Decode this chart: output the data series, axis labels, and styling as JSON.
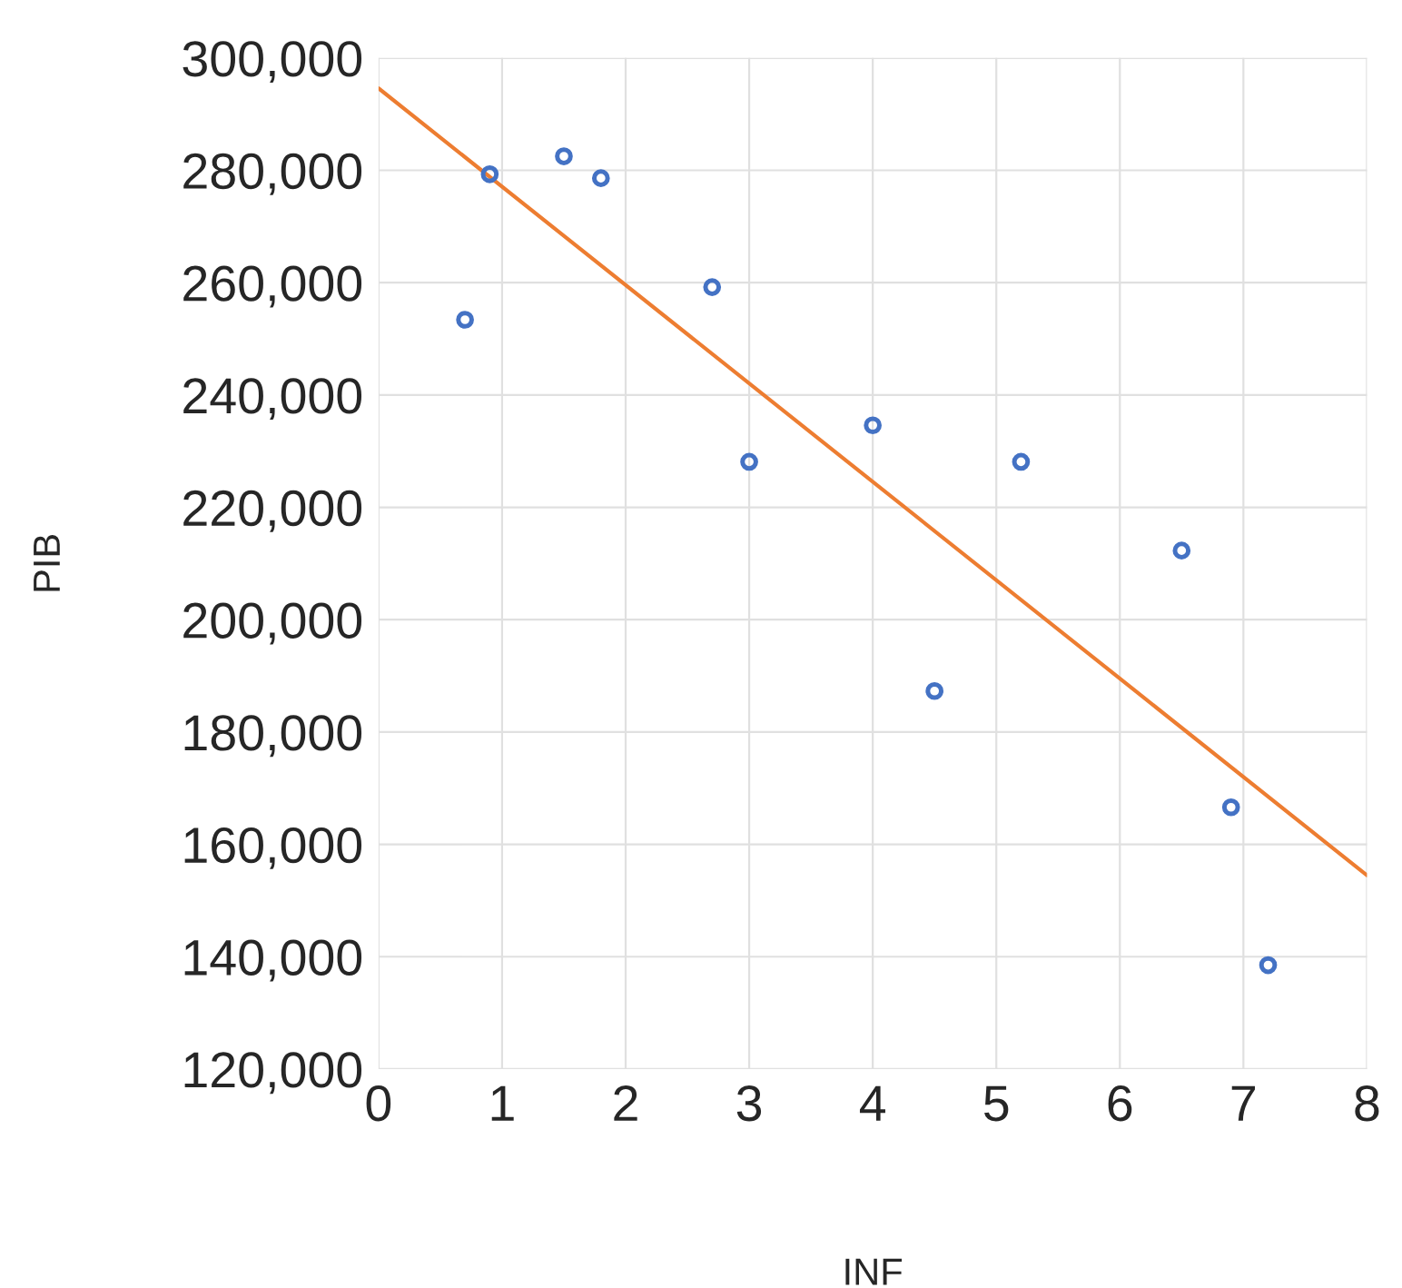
{
  "chart_data": {
    "type": "scatter",
    "xlabel": "INF",
    "ylabel": "PIB",
    "xlim": [
      0,
      8
    ],
    "xticks": [
      0,
      1,
      2,
      3,
      4,
      5,
      6,
      7,
      8
    ],
    "ylim": [
      120000,
      300000
    ],
    "yticks": [
      {
        "value": 120000,
        "label": "120,000"
      },
      {
        "value": 140000,
        "label": "140,000"
      },
      {
        "value": 160000,
        "label": "160,000"
      },
      {
        "value": 180000,
        "label": "180,000"
      },
      {
        "value": 200000,
        "label": "200,000"
      },
      {
        "value": 220000,
        "label": "220,000"
      },
      {
        "value": 240000,
        "label": "240,000"
      },
      {
        "value": 260000,
        "label": "260,000"
      },
      {
        "value": 280000,
        "label": "280,000"
      },
      {
        "value": 300000,
        "label": "300,000"
      }
    ],
    "grid": true,
    "series": [
      {
        "marker": "circle",
        "color": "#4472c4",
        "x": [
          0.7,
          0.9,
          1.5,
          1.8,
          2.7,
          3.0,
          4.0,
          4.5,
          5.2,
          6.5,
          6.9,
          7.2
        ],
        "values": [
          253400,
          279300,
          282500,
          278600,
          259200,
          228100,
          234600,
          187300,
          228100,
          212300,
          166600,
          138500
        ]
      },
      {
        "type": "line",
        "color": "#ed7d31",
        "x": [
          0,
          8
        ],
        "values": [
          294600,
          154500
        ]
      }
    ]
  }
}
